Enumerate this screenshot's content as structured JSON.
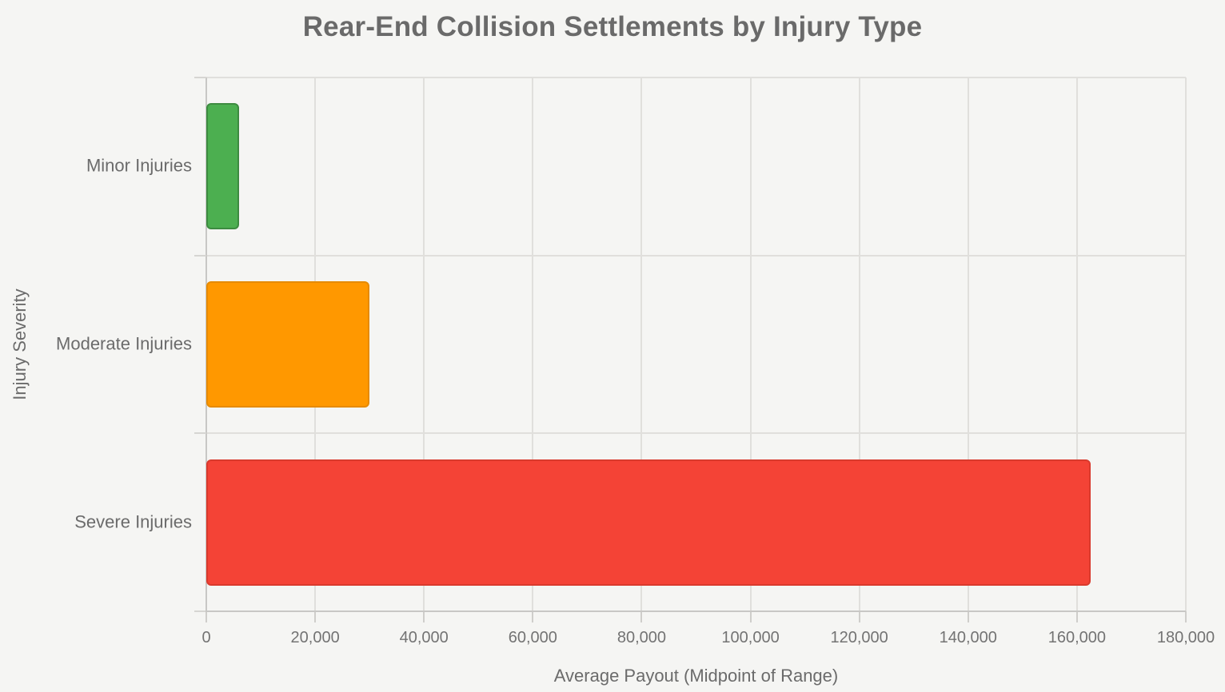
{
  "chart_data": {
    "type": "bar",
    "orientation": "horizontal",
    "title": "Rear-End Collision Settlements by Injury Type",
    "xlabel": "Average Payout (Midpoint of Range)",
    "ylabel": "Injury Severity",
    "categories": [
      "Minor Injuries",
      "Moderate Injuries",
      "Severe Injuries"
    ],
    "values": [
      6000,
      30000,
      162500
    ],
    "xlim": [
      0,
      180000
    ],
    "x_ticks": [
      0,
      20000,
      40000,
      60000,
      80000,
      100000,
      120000,
      140000,
      160000,
      180000
    ],
    "x_tick_labels": [
      "0",
      "20,000",
      "40,000",
      "60,000",
      "80,000",
      "100,000",
      "120,000",
      "140,000",
      "160,000",
      "180,000"
    ],
    "grid": true,
    "legend": false,
    "bar_colors": [
      {
        "name": "green",
        "fill": "#4caf50",
        "border": "#3d8b40"
      },
      {
        "name": "orange",
        "fill": "#ff9800",
        "border": "#e68a00"
      },
      {
        "name": "red",
        "fill": "#f44336",
        "border": "#d93a2d"
      }
    ],
    "colors": {
      "background": "#f5f5f3",
      "gridline": "#e0dfdc",
      "axis": "#c8c7c5",
      "text": "#6b6b6b"
    }
  }
}
